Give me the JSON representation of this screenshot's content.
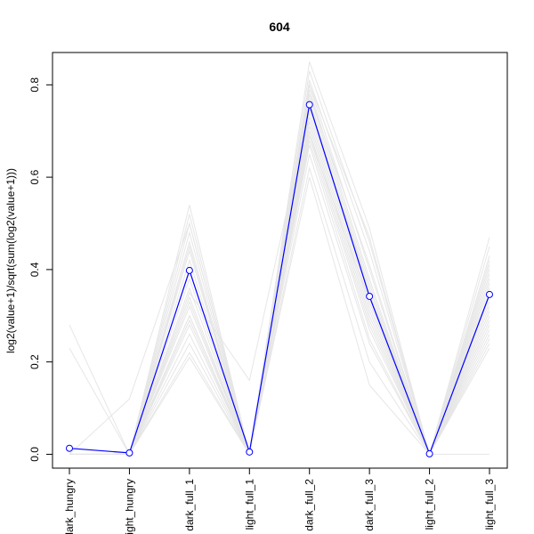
{
  "chart_data": {
    "type": "line",
    "title": "604",
    "xlabel": "",
    "ylabel": "log2(value+1)/sqrt(sum(log2(value+1)))",
    "categories": [
      "dark_hungry",
      "light_hungry",
      "dark_full_1",
      "light_full_1",
      "dark_full_2",
      "dark_full_3",
      "light_full_2",
      "light_full_3"
    ],
    "yticks": [
      0.0,
      0.2,
      0.4,
      0.6,
      0.8
    ],
    "ytick_labels": [
      "0.0",
      "0.2",
      "0.4",
      "0.6",
      "0.8"
    ],
    "ylim": [
      -0.03,
      0.87
    ],
    "grid": false,
    "colors": {
      "highlight": "#0000ff",
      "background_lines": "#e6e6e6",
      "axis": "#000000"
    },
    "highlight_series": {
      "values": [
        0.013,
        0.003,
        0.398,
        0.005,
        0.757,
        0.342,
        0.001,
        0.346
      ],
      "marker": "open-circle"
    },
    "background_series": [
      [
        0.0,
        0.0,
        0.54,
        0.0,
        0.85,
        0.49,
        0.0,
        0.47
      ],
      [
        0.0,
        0.0,
        0.52,
        0.0,
        0.83,
        0.46,
        0.0,
        0.45
      ],
      [
        0.0,
        0.0,
        0.5,
        0.0,
        0.81,
        0.44,
        0.0,
        0.42
      ],
      [
        0.0,
        0.0,
        0.48,
        0.0,
        0.8,
        0.4,
        0.0,
        0.41
      ],
      [
        0.0,
        0.0,
        0.46,
        0.0,
        0.79,
        0.38,
        0.0,
        0.4
      ],
      [
        0.0,
        0.0,
        0.44,
        0.0,
        0.78,
        0.37,
        0.0,
        0.39
      ],
      [
        0.0,
        0.0,
        0.42,
        0.0,
        0.77,
        0.36,
        0.0,
        0.38
      ],
      [
        0.0,
        0.0,
        0.4,
        0.0,
        0.76,
        0.35,
        0.0,
        0.36
      ],
      [
        0.0,
        0.0,
        0.38,
        0.0,
        0.75,
        0.34,
        0.0,
        0.35
      ],
      [
        0.0,
        0.0,
        0.36,
        0.0,
        0.74,
        0.33,
        0.0,
        0.34
      ],
      [
        0.0,
        0.0,
        0.34,
        0.0,
        0.73,
        0.32,
        0.0,
        0.33
      ],
      [
        0.0,
        0.0,
        0.32,
        0.0,
        0.72,
        0.31,
        0.0,
        0.32
      ],
      [
        0.0,
        0.0,
        0.3,
        0.0,
        0.71,
        0.3,
        0.0,
        0.3
      ],
      [
        0.0,
        0.0,
        0.28,
        0.0,
        0.7,
        0.29,
        0.0,
        0.29
      ],
      [
        0.0,
        0.0,
        0.26,
        0.0,
        0.69,
        0.28,
        0.0,
        0.28
      ],
      [
        0.0,
        0.0,
        0.24,
        0.0,
        0.68,
        0.27,
        0.0,
        0.27
      ],
      [
        0.0,
        0.0,
        0.22,
        0.0,
        0.67,
        0.25,
        0.0,
        0.25
      ],
      [
        0.0,
        0.0,
        0.21,
        0.0,
        0.65,
        0.24,
        0.0,
        0.24
      ],
      [
        0.0,
        0.0,
        0.3,
        0.0,
        0.6,
        0.15,
        0.0,
        0.23
      ],
      [
        0.28,
        0.0,
        0.45,
        0.0,
        0.62,
        0.2,
        0.0,
        0.26
      ],
      [
        0.23,
        0.0,
        0.29,
        0.0,
        0.69,
        0.33,
        0.0,
        0.31
      ],
      [
        0.0,
        0.12,
        0.5,
        0.0,
        0.78,
        0.41,
        0.0,
        0.43
      ],
      [
        0.0,
        0.0,
        0.35,
        0.16,
        0.75,
        0.36,
        0.0,
        0.37
      ],
      [
        0.0,
        0.0,
        0.33,
        0.0,
        0.8,
        0.47,
        0.0,
        0.0
      ]
    ]
  }
}
